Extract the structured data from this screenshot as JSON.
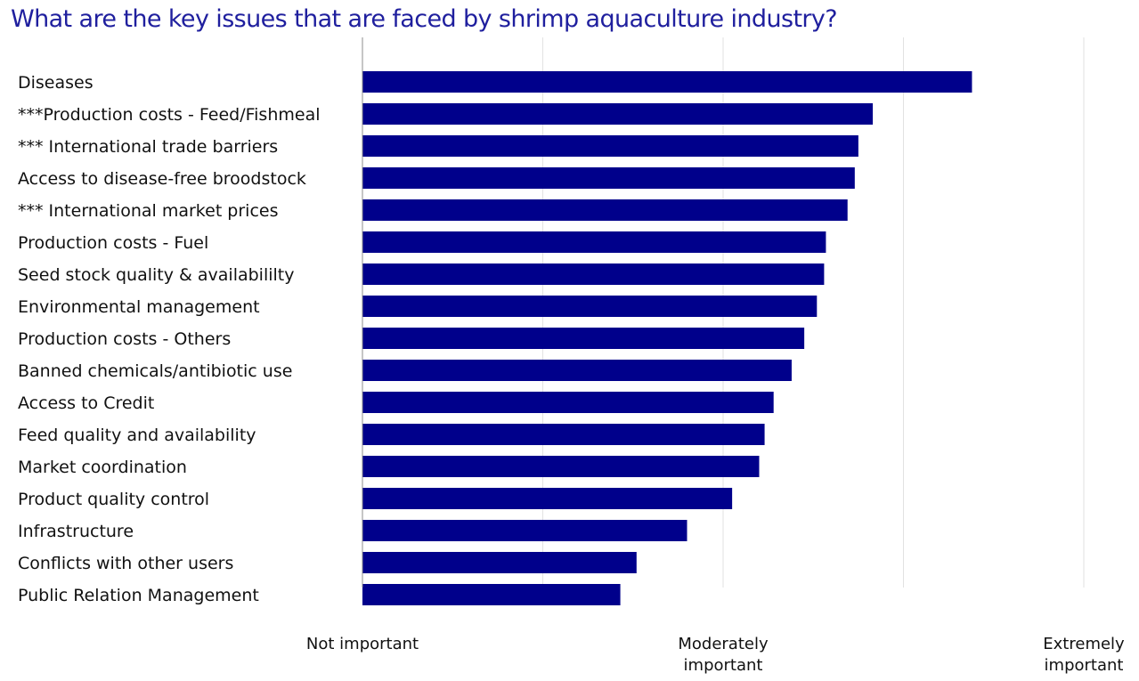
{
  "title": "What are the key issues that are faced by shrimp aquaculture industry?",
  "colors": {
    "bar": "#00008b",
    "grid": "#e2e2e2",
    "axis": "#8c8c8c",
    "title": "#1f1f9e"
  },
  "chart_data": {
    "type": "bar",
    "orientation": "horizontal",
    "title": "What are the key issues that are faced by shrimp aquaculture industry?",
    "xlabel": "",
    "ylabel": "",
    "xlim": [
      0,
      4
    ],
    "grid": true,
    "legend": "none",
    "x_ticks": [
      {
        "value": 0,
        "label": [
          "Not important"
        ]
      },
      {
        "value": 2,
        "label": [
          "Moderately",
          "important"
        ]
      },
      {
        "value": 4,
        "label": [
          "Extremely",
          "important"
        ]
      }
    ],
    "categories": [
      "Diseases",
      "***Production costs - Feed/Fishmeal",
      "*** International trade barriers",
      "Access to disease-free broodstock",
      "*** International market prices",
      "Production costs - Fuel",
      "Seed stock quality & availabililty",
      "Environmental management",
      "Production costs - Others",
      "Banned chemicals/antibiotic use",
      "Access to Credit",
      "Feed quality and availability",
      "Market coordination",
      "Product quality control",
      "Infrastructure",
      "Conflicts with other users",
      "Public Relation Management"
    ],
    "values": [
      3.38,
      2.83,
      2.75,
      2.73,
      2.69,
      2.57,
      2.56,
      2.52,
      2.45,
      2.38,
      2.28,
      2.23,
      2.2,
      2.05,
      1.8,
      1.52,
      1.43
    ]
  }
}
